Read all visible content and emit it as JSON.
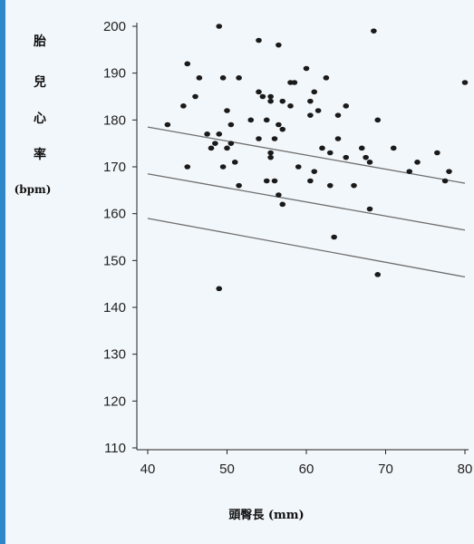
{
  "colors": {
    "frame": "#2f86c8",
    "panel": "#f2f7fb",
    "axis": "#222222",
    "point": "#1a1a1a",
    "line": "#6e6e6e"
  },
  "chart_data": {
    "type": "scatter",
    "title": "",
    "ylabel_chars": [
      "胎",
      "兒",
      "心",
      "率"
    ],
    "ylabel_unit": "(bpm)",
    "xlabel": "頭臀長 (mm)",
    "xlim": [
      40,
      80
    ],
    "ylim": [
      110,
      200
    ],
    "xticks": [
      40,
      50,
      60,
      70,
      80
    ],
    "yticks": [
      110,
      120,
      130,
      140,
      150,
      160,
      170,
      180,
      190,
      200
    ],
    "grid": false,
    "points": [
      {
        "x": 49,
        "y": 200
      },
      {
        "x": 56.5,
        "y": 196
      },
      {
        "x": 54,
        "y": 197
      },
      {
        "x": 68.5,
        "y": 199
      },
      {
        "x": 45,
        "y": 192
      },
      {
        "x": 46.5,
        "y": 189
      },
      {
        "x": 49.5,
        "y": 189
      },
      {
        "x": 51.5,
        "y": 189
      },
      {
        "x": 60,
        "y": 191
      },
      {
        "x": 62.5,
        "y": 189
      },
      {
        "x": 58,
        "y": 188
      },
      {
        "x": 58.5,
        "y": 188
      },
      {
        "x": 80,
        "y": 188
      },
      {
        "x": 46,
        "y": 185
      },
      {
        "x": 54,
        "y": 186
      },
      {
        "x": 54.5,
        "y": 185
      },
      {
        "x": 55.5,
        "y": 185
      },
      {
        "x": 55.5,
        "y": 184
      },
      {
        "x": 57,
        "y": 184
      },
      {
        "x": 58,
        "y": 183
      },
      {
        "x": 61,
        "y": 186
      },
      {
        "x": 60.5,
        "y": 184
      },
      {
        "x": 65,
        "y": 183
      },
      {
        "x": 44.5,
        "y": 183
      },
      {
        "x": 50,
        "y": 182
      },
      {
        "x": 60.5,
        "y": 181
      },
      {
        "x": 61.5,
        "y": 182
      },
      {
        "x": 64,
        "y": 181
      },
      {
        "x": 42.5,
        "y": 179
      },
      {
        "x": 53,
        "y": 180
      },
      {
        "x": 55,
        "y": 180
      },
      {
        "x": 57,
        "y": 178
      },
      {
        "x": 56.5,
        "y": 179
      },
      {
        "x": 50.5,
        "y": 179
      },
      {
        "x": 69,
        "y": 180
      },
      {
        "x": 47.5,
        "y": 177
      },
      {
        "x": 49,
        "y": 177
      },
      {
        "x": 54,
        "y": 176
      },
      {
        "x": 56,
        "y": 176
      },
      {
        "x": 64,
        "y": 176
      },
      {
        "x": 48,
        "y": 174
      },
      {
        "x": 48.5,
        "y": 175
      },
      {
        "x": 50,
        "y": 174
      },
      {
        "x": 50.5,
        "y": 175
      },
      {
        "x": 62,
        "y": 174
      },
      {
        "x": 63,
        "y": 173
      },
      {
        "x": 67,
        "y": 174
      },
      {
        "x": 71,
        "y": 174
      },
      {
        "x": 55.5,
        "y": 172
      },
      {
        "x": 55.5,
        "y": 173
      },
      {
        "x": 65,
        "y": 172
      },
      {
        "x": 67.5,
        "y": 172
      },
      {
        "x": 76.5,
        "y": 173
      },
      {
        "x": 45,
        "y": 170
      },
      {
        "x": 49.5,
        "y": 170
      },
      {
        "x": 51,
        "y": 171
      },
      {
        "x": 59,
        "y": 170
      },
      {
        "x": 61,
        "y": 169
      },
      {
        "x": 68,
        "y": 171
      },
      {
        "x": 73,
        "y": 169
      },
      {
        "x": 74,
        "y": 171
      },
      {
        "x": 78,
        "y": 169
      },
      {
        "x": 55,
        "y": 167
      },
      {
        "x": 56,
        "y": 167
      },
      {
        "x": 60.5,
        "y": 167
      },
      {
        "x": 63,
        "y": 166
      },
      {
        "x": 66,
        "y": 166
      },
      {
        "x": 77.5,
        "y": 167
      },
      {
        "x": 51.5,
        "y": 166
      },
      {
        "x": 56.5,
        "y": 164
      },
      {
        "x": 57,
        "y": 162
      },
      {
        "x": 68,
        "y": 161
      },
      {
        "x": 63.5,
        "y": 155
      },
      {
        "x": 69,
        "y": 147
      },
      {
        "x": 49,
        "y": 144
      }
    ],
    "lines": [
      {
        "x": [
          40,
          80
        ],
        "y": [
          178.5,
          166.5
        ]
      },
      {
        "x": [
          40,
          80
        ],
        "y": [
          168.5,
          156.5
        ]
      },
      {
        "x": [
          40,
          80
        ],
        "y": [
          159,
          146.5
        ]
      }
    ]
  }
}
